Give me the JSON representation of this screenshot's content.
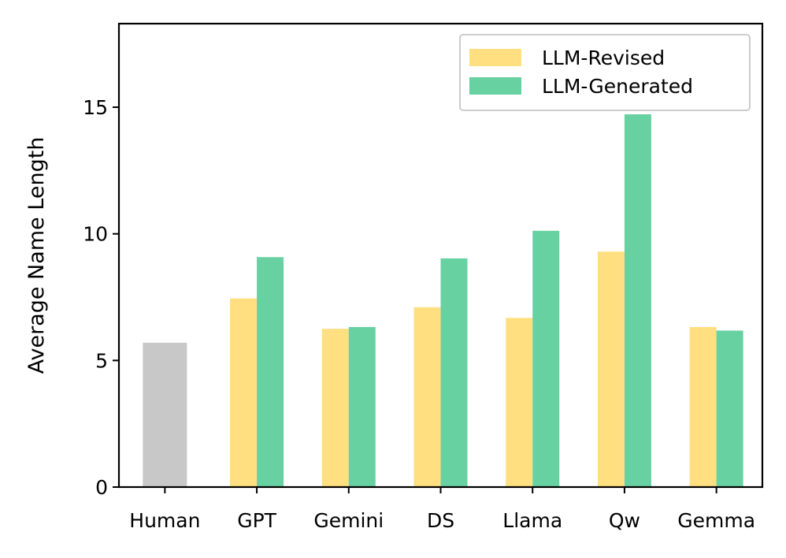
{
  "chart_data": {
    "type": "bar",
    "title": "",
    "xlabel": "",
    "ylabel": "Average Name Length",
    "ylim": [
      0,
      18.3
    ],
    "yticks": [
      0,
      5,
      10,
      15
    ],
    "categories": [
      "Human",
      "GPT",
      "Gemini",
      "DS",
      "Llama",
      "Qw",
      "Gemma"
    ],
    "baseline": {
      "category": "Human",
      "value": 5.7,
      "color": "#c8c8c8"
    },
    "series": [
      {
        "name": "LLM-Revised",
        "color": "#ffdf80",
        "values": [
          null,
          7.45,
          6.25,
          7.1,
          6.68,
          9.3,
          6.32
        ]
      },
      {
        "name": "LLM-Generated",
        "color": "#68d1a2",
        "values": [
          null,
          9.08,
          6.32,
          9.03,
          10.12,
          14.72,
          6.18
        ]
      }
    ],
    "legend": {
      "position": "top-right",
      "entries": [
        "LLM-Revised",
        "LLM-Generated"
      ]
    },
    "grid": false
  }
}
